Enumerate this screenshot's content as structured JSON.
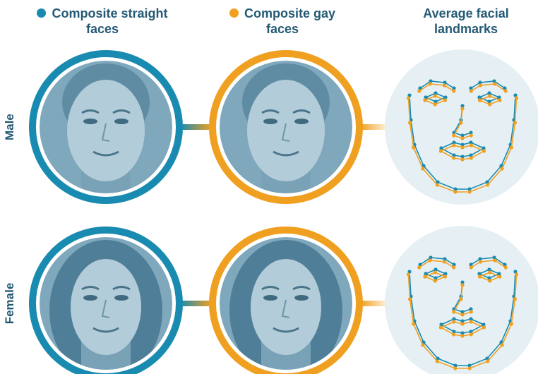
{
  "headers": [
    "Composite straight faces",
    "Composite gay faces",
    "Average facial landmarks"
  ],
  "rows": [
    "Male",
    "Female"
  ]
}
